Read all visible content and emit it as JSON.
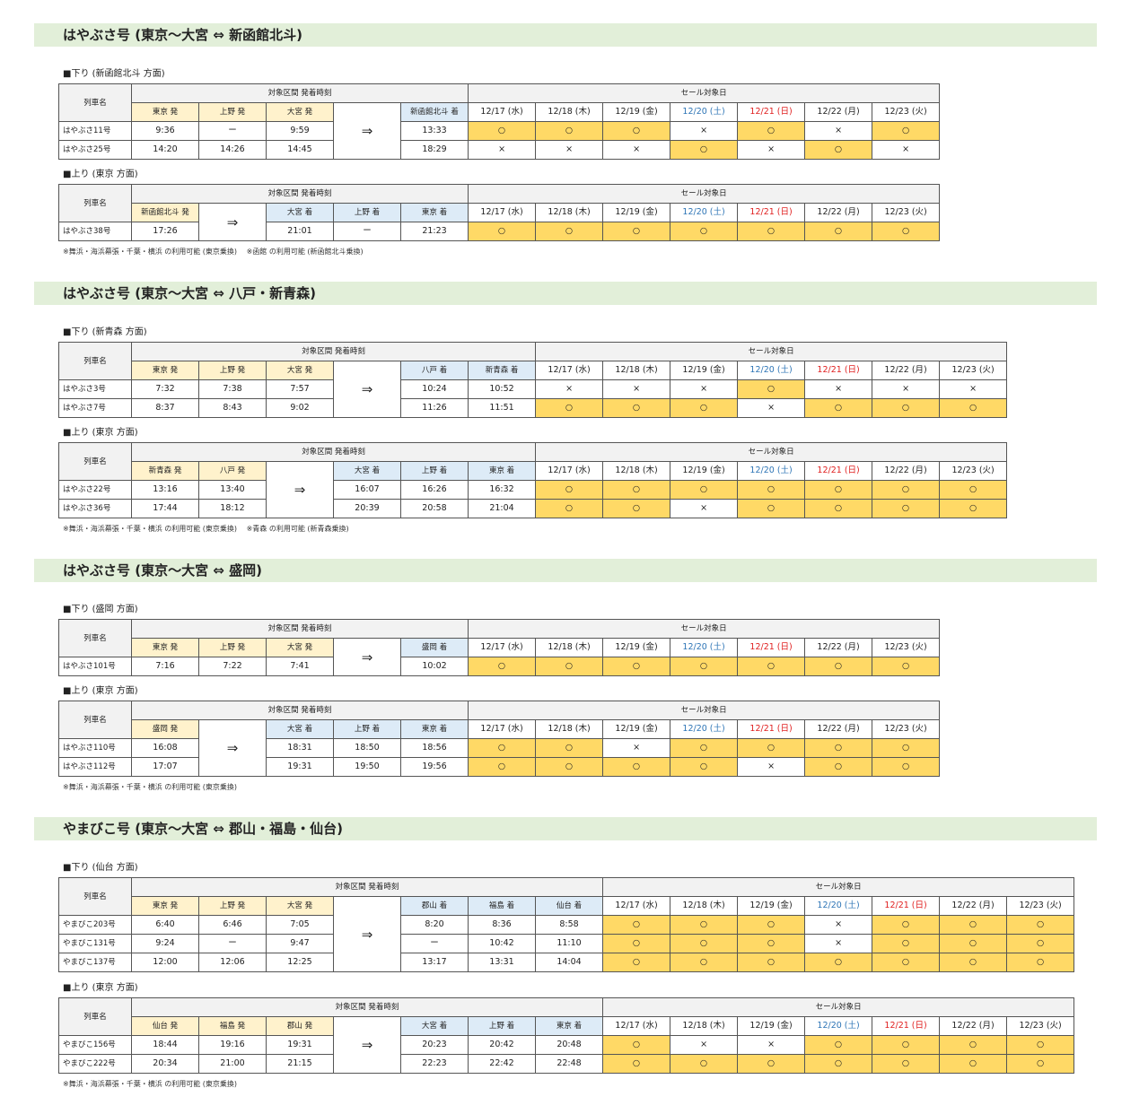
{
  "common": {
    "train_name_label": "列車名",
    "timetable_label": "対象区間 発着時刻",
    "sale_label": "セール対象日",
    "arrow": "⇒",
    "dates": [
      {
        "label": "12/17 (水)",
        "type": "weekday"
      },
      {
        "label": "12/18 (木)",
        "type": "weekday"
      },
      {
        "label": "12/19 (金)",
        "type": "weekday"
      },
      {
        "label": "12/20 (土)",
        "type": "sat"
      },
      {
        "label": "12/21 (日)",
        "type": "sun"
      },
      {
        "label": "12/22 (月)",
        "type": "weekday"
      },
      {
        "label": "12/23 (火)",
        "type": "weekday"
      }
    ]
  },
  "colors": {
    "header_band": "#e2efd9",
    "departure_header": "#fff2cc",
    "arrival_header": "#ddebf7",
    "sale_cell": "#ffd966",
    "saturday": "#2e75b6",
    "sunday": "#e02020"
  },
  "sections": [
    {
      "title": "はやぶさ号 (東京～大宮 ⇔ 新函館北斗)",
      "note": "※舞浜・海浜幕張・千葉・横浜 の利用可能 (東京乗換)　 ※函館 の利用可能 (新函館北斗乗換)",
      "tables": [
        {
          "subtitle": "■下り (新函館北斗 方面)",
          "dep_stations": [
            "東京 発",
            "上野 発",
            "大宮 発"
          ],
          "arr_stations": [
            "新函館北斗 着"
          ],
          "rows": [
            {
              "train": "はやぶさ11号",
              "dep": [
                "9:36",
                "ー",
                "9:59"
              ],
              "arr": [
                "13:33"
              ],
              "sale": [
                "○",
                "○",
                "○",
                "×",
                "○",
                "×",
                "○"
              ]
            },
            {
              "train": "はやぶさ25号",
              "dep": [
                "14:20",
                "14:26",
                "14:45"
              ],
              "arr": [
                "18:29"
              ],
              "sale": [
                "×",
                "×",
                "×",
                "○",
                "×",
                "○",
                "×"
              ]
            }
          ]
        },
        {
          "subtitle": "■上り (東京 方面)",
          "dep_stations": [
            "新函館北斗 発"
          ],
          "arr_stations": [
            "大宮 着",
            "上野 着",
            "東京 着"
          ],
          "rows": [
            {
              "train": "はやぶさ38号",
              "dep": [
                "17:26"
              ],
              "arr": [
                "21:01",
                "ー",
                "21:23"
              ],
              "sale": [
                "○",
                "○",
                "○",
                "○",
                "○",
                "○",
                "○"
              ]
            }
          ]
        }
      ]
    },
    {
      "title": "はやぶさ号 (東京～大宮 ⇔ 八戸・新青森)",
      "note": "※舞浜・海浜幕張・千葉・横浜 の利用可能 (東京乗換)　 ※青森 の利用可能 (新青森乗換)",
      "tables": [
        {
          "subtitle": "■下り (新青森 方面)",
          "dep_stations": [
            "東京 発",
            "上野 発",
            "大宮 発"
          ],
          "arr_stations": [
            "八戸 着",
            "新青森 着"
          ],
          "rows": [
            {
              "train": "はやぶさ3号",
              "dep": [
                "7:32",
                "7:38",
                "7:57"
              ],
              "arr": [
                "10:24",
                "10:52"
              ],
              "sale": [
                "×",
                "×",
                "×",
                "○",
                "×",
                "×",
                "×"
              ]
            },
            {
              "train": "はやぶさ7号",
              "dep": [
                "8:37",
                "8:43",
                "9:02"
              ],
              "arr": [
                "11:26",
                "11:51"
              ],
              "sale": [
                "○",
                "○",
                "○",
                "×",
                "○",
                "○",
                "○"
              ]
            }
          ]
        },
        {
          "subtitle": "■上り (東京 方面)",
          "dep_stations": [
            "新青森 発",
            "八戸 発"
          ],
          "arr_stations": [
            "大宮 着",
            "上野 着",
            "東京 着"
          ],
          "rows": [
            {
              "train": "はやぶさ22号",
              "dep": [
                "13:16",
                "13:40"
              ],
              "arr": [
                "16:07",
                "16:26",
                "16:32"
              ],
              "sale": [
                "○",
                "○",
                "○",
                "○",
                "○",
                "○",
                "○"
              ]
            },
            {
              "train": "はやぶさ36号",
              "dep": [
                "17:44",
                "18:12"
              ],
              "arr": [
                "20:39",
                "20:58",
                "21:04"
              ],
              "sale": [
                "○",
                "○",
                "×",
                "○",
                "○",
                "○",
                "○"
              ]
            }
          ]
        }
      ]
    },
    {
      "title": "はやぶさ号 (東京～大宮 ⇔ 盛岡)",
      "note": "※舞浜・海浜幕張・千葉・横浜 の利用可能 (東京乗換)",
      "tables": [
        {
          "subtitle": "■下り (盛岡 方面)",
          "dep_stations": [
            "東京 発",
            "上野 発",
            "大宮 発"
          ],
          "arr_stations": [
            "盛岡 着"
          ],
          "rows": [
            {
              "train": "はやぶさ101号",
              "dep": [
                "7:16",
                "7:22",
                "7:41"
              ],
              "arr": [
                "10:02"
              ],
              "sale": [
                "○",
                "○",
                "○",
                "○",
                "○",
                "○",
                "○"
              ]
            }
          ]
        },
        {
          "subtitle": "■上り (東京 方面)",
          "dep_stations": [
            "盛岡 発"
          ],
          "arr_stations": [
            "大宮 着",
            "上野 着",
            "東京 着"
          ],
          "rows": [
            {
              "train": "はやぶさ110号",
              "dep": [
                "16:08"
              ],
              "arr": [
                "18:31",
                "18:50",
                "18:56"
              ],
              "sale": [
                "○",
                "○",
                "×",
                "○",
                "○",
                "○",
                "○"
              ]
            },
            {
              "train": "はやぶさ112号",
              "dep": [
                "17:07"
              ],
              "arr": [
                "19:31",
                "19:50",
                "19:56"
              ],
              "sale": [
                "○",
                "○",
                "○",
                "○",
                "×",
                "○",
                "○"
              ]
            }
          ]
        }
      ]
    },
    {
      "title": "やまびこ号 (東京～大宮 ⇔ 郡山・福島・仙台)",
      "note": "※舞浜・海浜幕張・千葉・横浜 の利用可能 (東京乗換)",
      "tables": [
        {
          "subtitle": "■下り (仙台 方面)",
          "dep_stations": [
            "東京 発",
            "上野 発",
            "大宮 発"
          ],
          "arr_stations": [
            "郡山 着",
            "福島 着",
            "仙台 着"
          ],
          "rows": [
            {
              "train": "やまびこ203号",
              "dep": [
                "6:40",
                "6:46",
                "7:05"
              ],
              "arr": [
                "8:20",
                "8:36",
                "8:58"
              ],
              "sale": [
                "○",
                "○",
                "○",
                "×",
                "○",
                "○",
                "○"
              ]
            },
            {
              "train": "やまびこ131号",
              "dep": [
                "9:24",
                "ー",
                "9:47"
              ],
              "arr": [
                "ー",
                "10:42",
                "11:10"
              ],
              "sale": [
                "○",
                "○",
                "○",
                "×",
                "○",
                "○",
                "○"
              ]
            },
            {
              "train": "やまびこ137号",
              "dep": [
                "12:00",
                "12:06",
                "12:25"
              ],
              "arr": [
                "13:17",
                "13:31",
                "14:04"
              ],
              "sale": [
                "○",
                "○",
                "○",
                "○",
                "○",
                "○",
                "○"
              ]
            }
          ]
        },
        {
          "subtitle": "■上り (東京 方面)",
          "dep_stations": [
            "仙台 発",
            "福島 発",
            "郡山 発"
          ],
          "arr_stations": [
            "大宮 着",
            "上野 着",
            "東京 着"
          ],
          "rows": [
            {
              "train": "やまびこ156号",
              "dep": [
                "18:44",
                "19:16",
                "19:31"
              ],
              "arr": [
                "20:23",
                "20:42",
                "20:48"
              ],
              "sale": [
                "○",
                "×",
                "×",
                "○",
                "○",
                "○",
                "○"
              ]
            },
            {
              "train": "やまびこ222号",
              "dep": [
                "20:34",
                "21:00",
                "21:15"
              ],
              "arr": [
                "22:23",
                "22:42",
                "22:48"
              ],
              "sale": [
                "○",
                "○",
                "○",
                "○",
                "○",
                "○",
                "○"
              ]
            }
          ]
        }
      ]
    }
  ]
}
